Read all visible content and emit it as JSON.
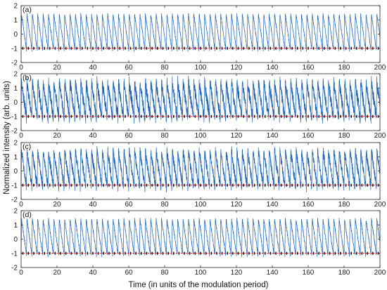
{
  "chart_data": {
    "type": "line",
    "xlabel": "Time (in units of the modulation period)",
    "ylabel": "Normalized intensity (arb. units)",
    "colors": {
      "trace": "#1f63b4",
      "threshold": "#ff0000",
      "peaks": "#000000"
    },
    "panels": [
      {
        "label": "(a)",
        "x_range": [
          0,
          200
        ],
        "y_range": [
          -2,
          2
        ],
        "threshold": -1,
        "pulses_per_period": 3,
        "x_ticks": [
          "0",
          "20",
          "40",
          "60",
          "80",
          "100",
          "120",
          "140",
          "160",
          "180",
          "200"
        ],
        "y_ticks": [
          "2",
          "1",
          "0",
          "-1",
          "-2"
        ]
      },
      {
        "label": "(b)",
        "x_range": [
          0,
          200
        ],
        "y_range": [
          -2,
          2
        ],
        "threshold": -1,
        "pulses_per_period": 3,
        "x_ticks": [
          "0",
          "20",
          "40",
          "60",
          "80",
          "100",
          "120",
          "140",
          "160",
          "180",
          "200"
        ],
        "y_ticks": [
          "2",
          "1",
          "0",
          "-1",
          "-2"
        ]
      },
      {
        "label": "(c)",
        "x_range": [
          0,
          200
        ],
        "y_range": [
          -2,
          2
        ],
        "threshold": -1,
        "pulses_per_period": 3,
        "x_ticks": [
          "0",
          "20",
          "40",
          "60",
          "80",
          "100",
          "120",
          "140",
          "160",
          "180",
          "200"
        ],
        "y_ticks": [
          "2",
          "1",
          "0",
          "-1",
          "-2"
        ]
      },
      {
        "label": "(d)",
        "x_range": [
          0,
          200
        ],
        "y_range": [
          -2,
          2
        ],
        "threshold": -1,
        "pulses_per_period": 3,
        "x_ticks": [
          "0",
          "20",
          "40",
          "60",
          "80",
          "100",
          "120",
          "140",
          "160",
          "180",
          "200"
        ],
        "y_ticks": [
          "2",
          "1",
          "0",
          "-1",
          "-2"
        ]
      }
    ]
  }
}
